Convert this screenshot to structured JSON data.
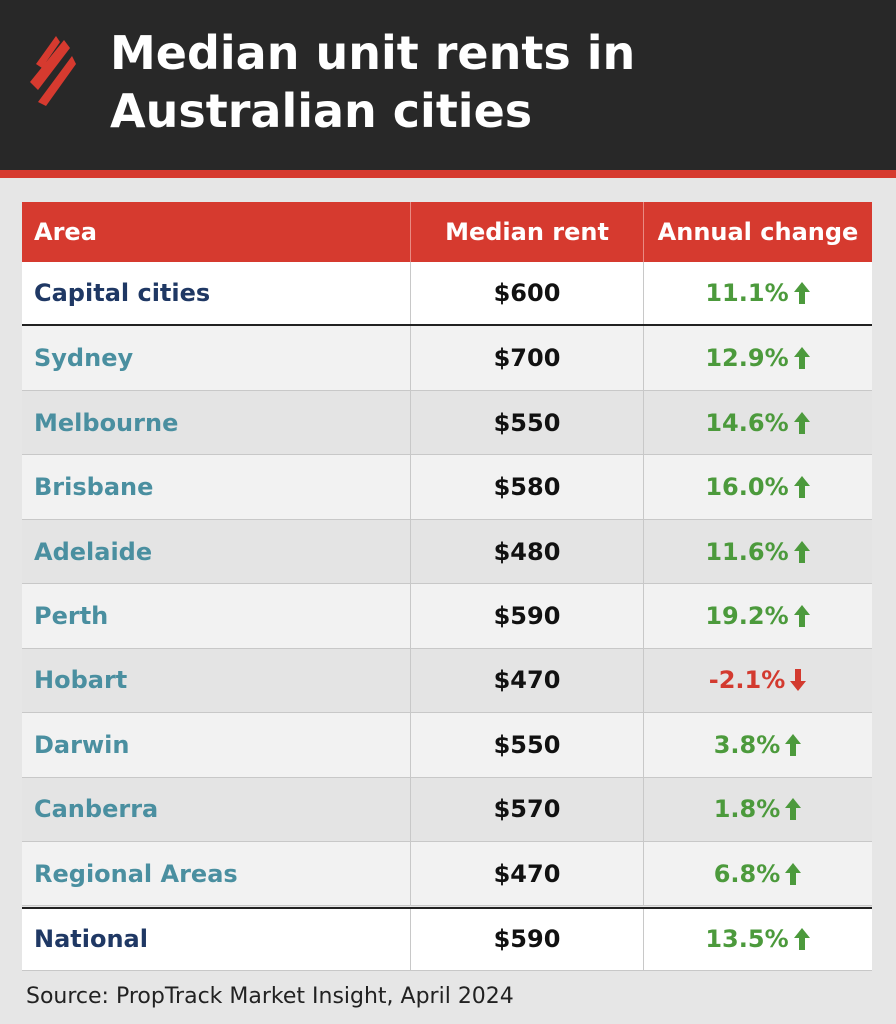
{
  "header": {
    "title": "Median unit rents in Australian cities"
  },
  "table": {
    "columns": [
      "Area",
      "Median rent",
      "Annual change"
    ],
    "rows": [
      [
        "Capital cities",
        "$600",
        "11.1%"
      ],
      [
        "Sydney",
        "$700",
        "12.9%"
      ],
      [
        "Melbourne",
        "$550",
        "14.6%"
      ],
      [
        "Brisbane",
        "$580",
        "16.0%"
      ],
      [
        "Adelaide",
        "$480",
        "11.6%"
      ],
      [
        "Perth",
        "$590",
        "19.2%"
      ],
      [
        "Hobart",
        "$470",
        "-2.1%"
      ],
      [
        "Darwin",
        "$550",
        "3.8%"
      ],
      [
        "Canberra",
        "$570",
        "1.8%"
      ],
      [
        "Regional Areas",
        "$470",
        "6.8%"
      ],
      [
        "National",
        "$590",
        "13.5%"
      ]
    ]
  },
  "footer": {
    "source": "Source: PropTrack Market Insight, April 2024"
  }
}
